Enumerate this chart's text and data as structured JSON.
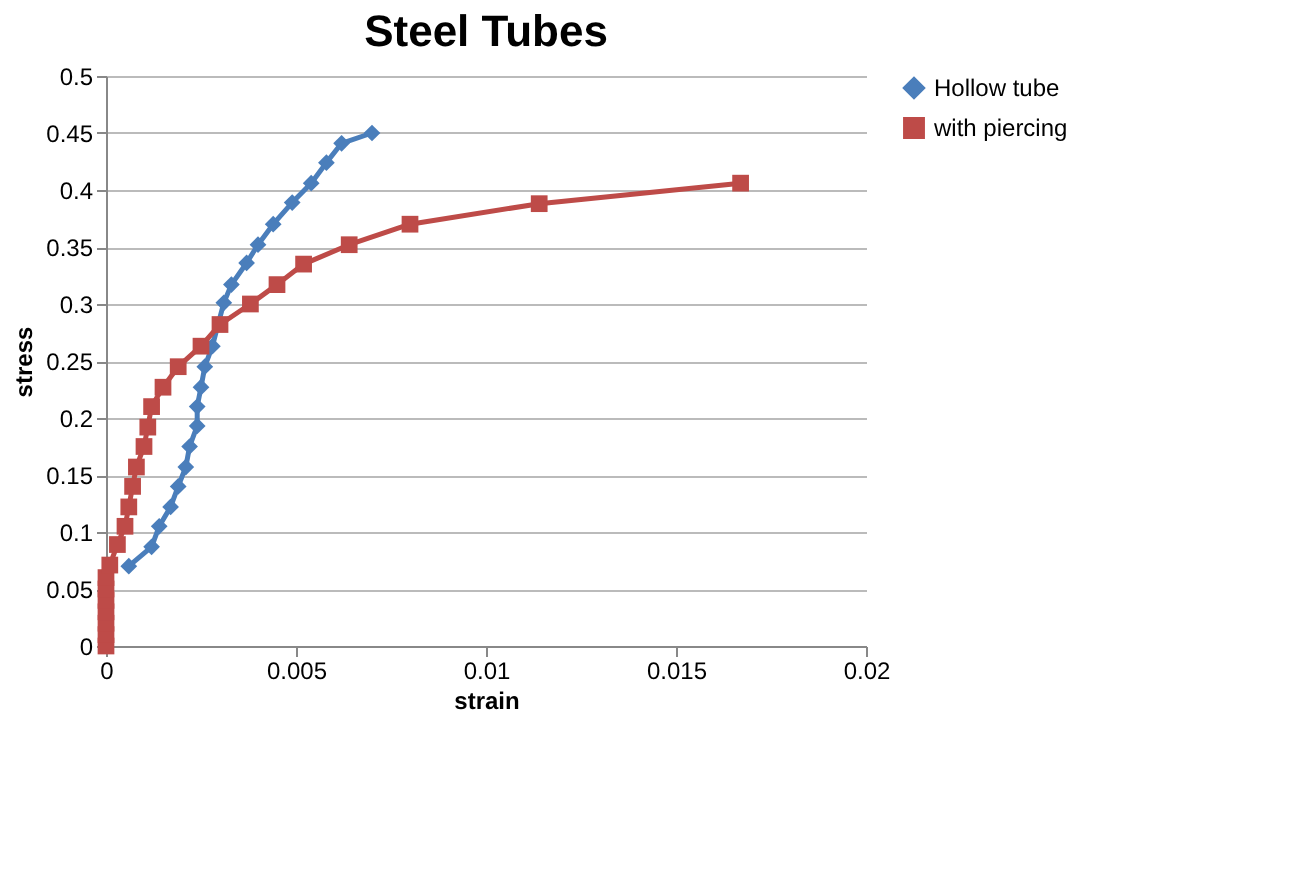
{
  "chart_data": {
    "type": "line",
    "title": "Steel Tubes",
    "xlabel": "strain",
    "ylabel": "stress",
    "xlim": [
      0,
      0.02
    ],
    "xticks": [
      0,
      0.005,
      0.01,
      0.015,
      0.02
    ],
    "ylim": [
      0,
      0.5
    ],
    "yticks": [
      0,
      0.05,
      0.1,
      0.15,
      0.2,
      0.25,
      0.3,
      0.35,
      0.4,
      0.45,
      0.5
    ],
    "grid": "y",
    "legend": "right",
    "series": [
      {
        "name": "Hollow tube",
        "color": "#4a7ebb",
        "marker": "diamond",
        "x": [
          0.0006,
          0.0012,
          0.0014,
          0.0017,
          0.0019,
          0.0021,
          0.0022,
          0.0024,
          0.0024,
          0.0025,
          0.0026,
          0.0028,
          0.0031,
          0.0033,
          0.0037,
          0.004,
          0.0044,
          0.0049,
          0.0054,
          0.0058,
          0.0062,
          0.007
        ],
        "values": [
          0.07,
          0.087,
          0.105,
          0.122,
          0.14,
          0.157,
          0.175,
          0.193,
          0.21,
          0.227,
          0.245,
          0.263,
          0.301,
          0.317,
          0.336,
          0.352,
          0.37,
          0.389,
          0.406,
          0.424,
          0.441,
          0.45
        ]
      },
      {
        "name": "with piercing",
        "color": "#be4b48",
        "marker": "square",
        "x": [
          0,
          0,
          0,
          0,
          0,
          0,
          0,
          0.0001,
          0.0003,
          0.0005,
          0.0006,
          0.0007,
          0.0008,
          0.001,
          0.0011,
          0.0012,
          0.0015,
          0.0019,
          0.0025,
          0.003,
          0.0038,
          0.0045,
          0.0052,
          0.0064,
          0.008,
          0.0114,
          0.0167
        ],
        "values": [
          0,
          0.01,
          0.02,
          0.03,
          0.04,
          0.05,
          0.06,
          0.071,
          0.089,
          0.105,
          0.122,
          0.14,
          0.157,
          0.175,
          0.192,
          0.21,
          0.227,
          0.245,
          0.263,
          0.282,
          0.3,
          0.317,
          0.335,
          0.352,
          0.37,
          0.388,
          0.406
        ]
      }
    ]
  }
}
